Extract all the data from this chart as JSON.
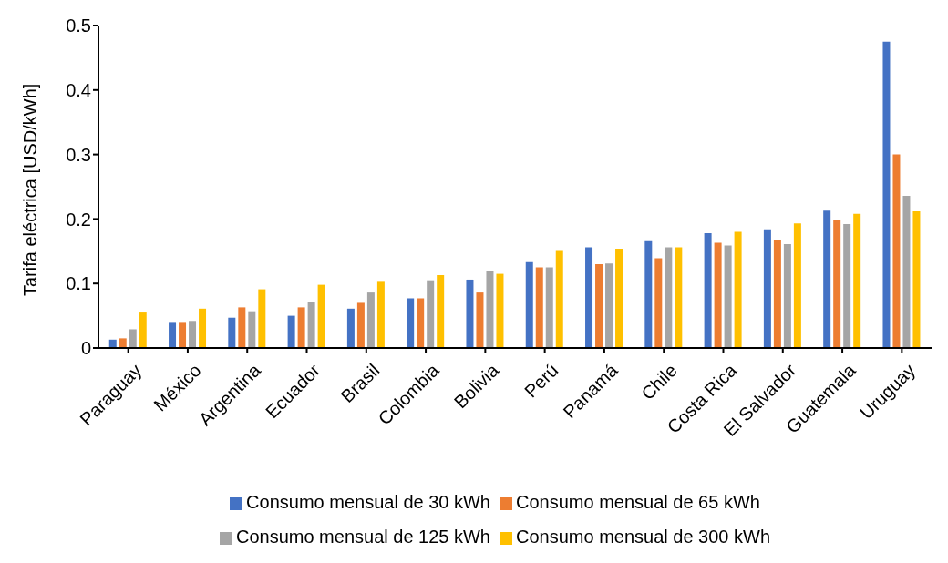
{
  "chart_data": {
    "type": "bar",
    "ylabel": "Tarifa eléctrica [USD/kWh]",
    "categories": [
      "Paraguay",
      "México",
      "Argentina",
      "Ecuador",
      "Brasil",
      "Colombia",
      "Bolivia",
      "Perú",
      "Panamá",
      "Chile",
      "Costa Rica",
      "El Salvador",
      "Guatemala",
      "Uruguay"
    ],
    "series": [
      {
        "name": "Consumo mensual de 30 kWh",
        "color": "#4472c4",
        "values": [
          0.013,
          0.039,
          0.047,
          0.05,
          0.061,
          0.077,
          0.106,
          0.133,
          0.156,
          0.167,
          0.178,
          0.184,
          0.213,
          0.475
        ]
      },
      {
        "name": "Consumo mensual de 65 kWh",
        "color": "#ed7d31",
        "values": [
          0.015,
          0.039,
          0.063,
          0.063,
          0.07,
          0.077,
          0.086,
          0.125,
          0.13,
          0.139,
          0.163,
          0.168,
          0.198,
          0.3
        ]
      },
      {
        "name": "Consumo mensual de 125 kWh",
        "color": "#a5a5a5",
        "values": [
          0.029,
          0.042,
          0.057,
          0.072,
          0.086,
          0.105,
          0.119,
          0.125,
          0.131,
          0.156,
          0.159,
          0.161,
          0.192,
          0.236
        ]
      },
      {
        "name": "Consumo mensual de 300 kWh",
        "color": "#ffc000",
        "values": [
          0.055,
          0.061,
          0.091,
          0.098,
          0.104,
          0.113,
          0.115,
          0.152,
          0.154,
          0.156,
          0.18,
          0.193,
          0.208,
          0.212
        ]
      }
    ],
    "ylim": [
      0,
      0.5
    ],
    "yticks": [
      0,
      0.1,
      0.2,
      0.3,
      0.4,
      0.5
    ],
    "grid": false,
    "legend": "bottom"
  }
}
